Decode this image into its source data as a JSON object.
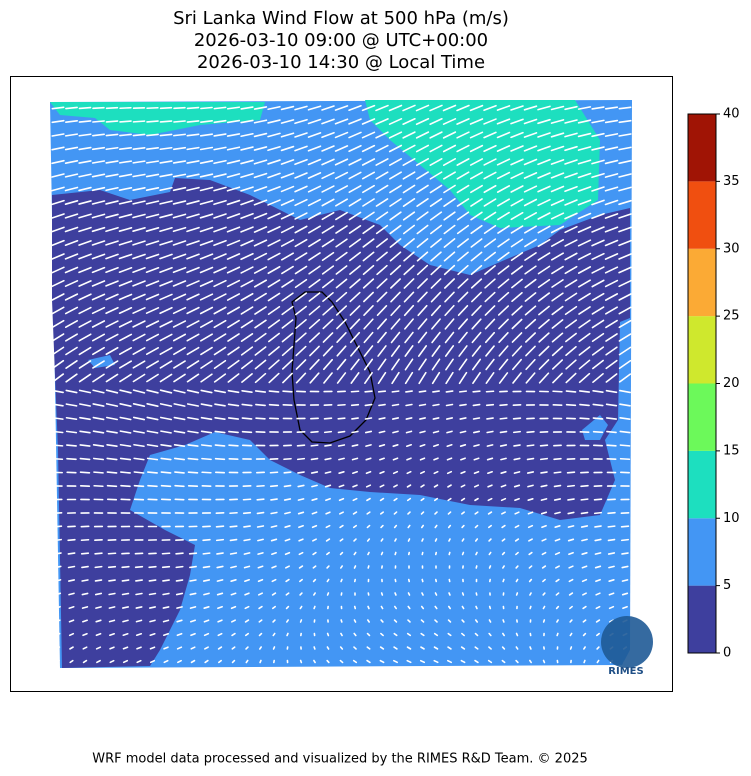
{
  "title": [
    "Sri Lanka Wind Flow at 500 hPa (m/s)",
    "2026-03-10 09:00 @ UTC+00:00",
    "2026-03-10 14:30 @ Local Time"
  ],
  "colorbar": {
    "lim": [
      0,
      40
    ],
    "ticks": [
      0,
      5,
      10,
      15,
      20,
      25,
      30,
      35,
      40
    ],
    "colors": [
      "#3e3f9e",
      "#4396f4",
      "#1ddfbf",
      "#6cf95a",
      "#cfe82d",
      "#fbaa35",
      "#f04f10",
      "#a01405"
    ]
  },
  "logo_text": "RIMES",
  "footer": "WRF model data processed and visualized by the RIMES R&D Team. © 2025"
}
